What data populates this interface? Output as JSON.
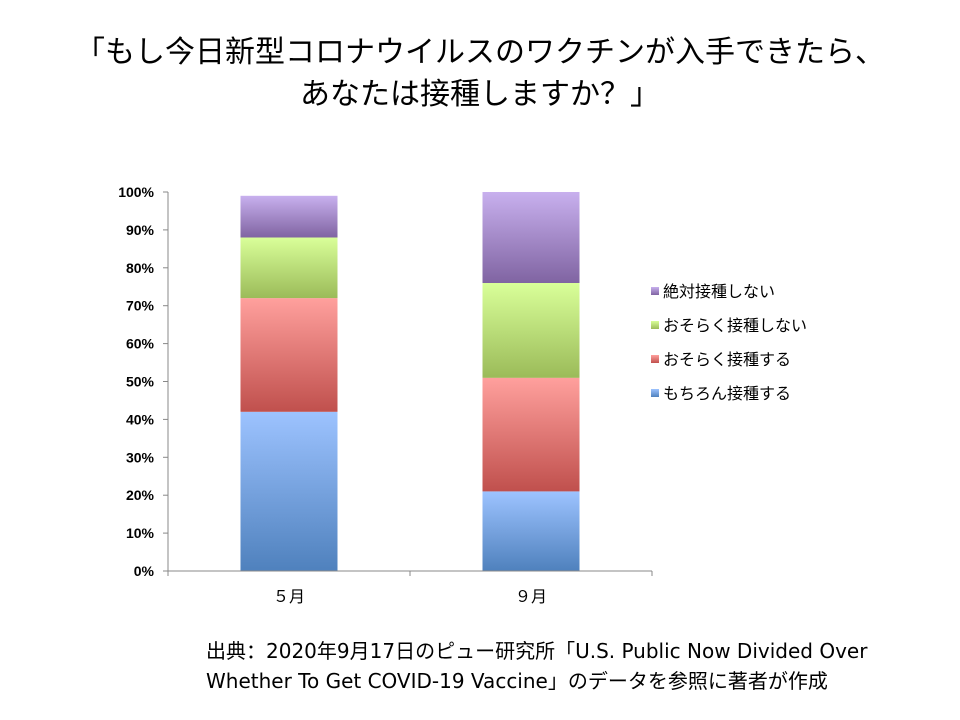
{
  "title": {
    "line1": "「もし今日新型コロナウイルスのワクチンが入手できたら、",
    "line2": "あなたは接種しますか？」"
  },
  "source": {
    "line1": "出典：2020年9月17日のピュー研究所「U.S. Public Now Divided Over",
    "line2": "Whether To Get COVID-19 Vaccine」のデータを参照に著者が作成"
  },
  "chart_data": {
    "type": "bar",
    "stacked": true,
    "categories": [
      "５月",
      "９月"
    ],
    "y_ticks": [
      "0%",
      "10%",
      "20%",
      "30%",
      "40%",
      "50%",
      "60%",
      "70%",
      "80%",
      "90%",
      "100%"
    ],
    "ylim": [
      0,
      100
    ],
    "legend_position": "right",
    "series": [
      {
        "name": "もちろん接種する",
        "values": [
          42,
          21
        ],
        "color": "#4f81bd"
      },
      {
        "name": "おそらく接種する",
        "values": [
          30,
          30
        ],
        "color": "#c0504d"
      },
      {
        "name": "おそらく接種しない",
        "values": [
          16,
          25
        ],
        "color": "#9bbb59"
      },
      {
        "name": "絶対接種しない",
        "values": [
          11,
          24
        ],
        "color": "#8064a2"
      }
    ]
  }
}
